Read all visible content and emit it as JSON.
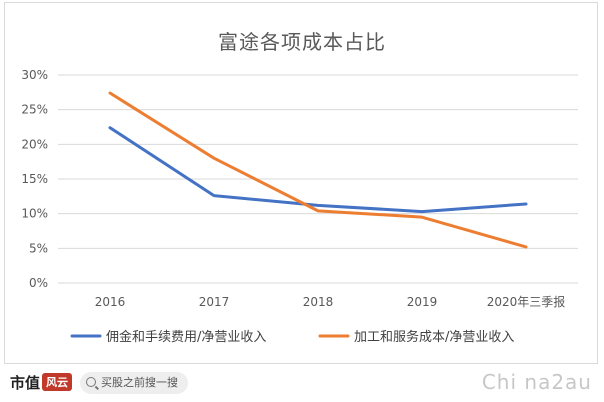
{
  "chart_data": {
    "type": "line",
    "title": "富途各项成本占比",
    "categories": [
      "2016",
      "2017",
      "2018",
      "2019",
      "2020年三季报"
    ],
    "y_ticks": [
      "0%",
      "5%",
      "10%",
      "15%",
      "20%",
      "25%",
      "30%"
    ],
    "ylim": [
      0,
      30
    ],
    "y_unit": "%",
    "grid": true,
    "legend_position": "bottom",
    "series": [
      {
        "name": "佣金和手续费用/净营业收入",
        "color": "#4472C4",
        "values": [
          22.4,
          12.6,
          11.2,
          10.3,
          11.4
        ]
      },
      {
        "name": "加工和服务成本/净营业收入",
        "color": "#ED7D31",
        "values": [
          27.4,
          18.0,
          10.4,
          9.5,
          5.2
        ]
      }
    ]
  },
  "footer": {
    "brand_name": "市值",
    "brand_mark": "风云",
    "search_placeholder": "买股之前搜一搜",
    "watermark": "Chi na2au"
  }
}
